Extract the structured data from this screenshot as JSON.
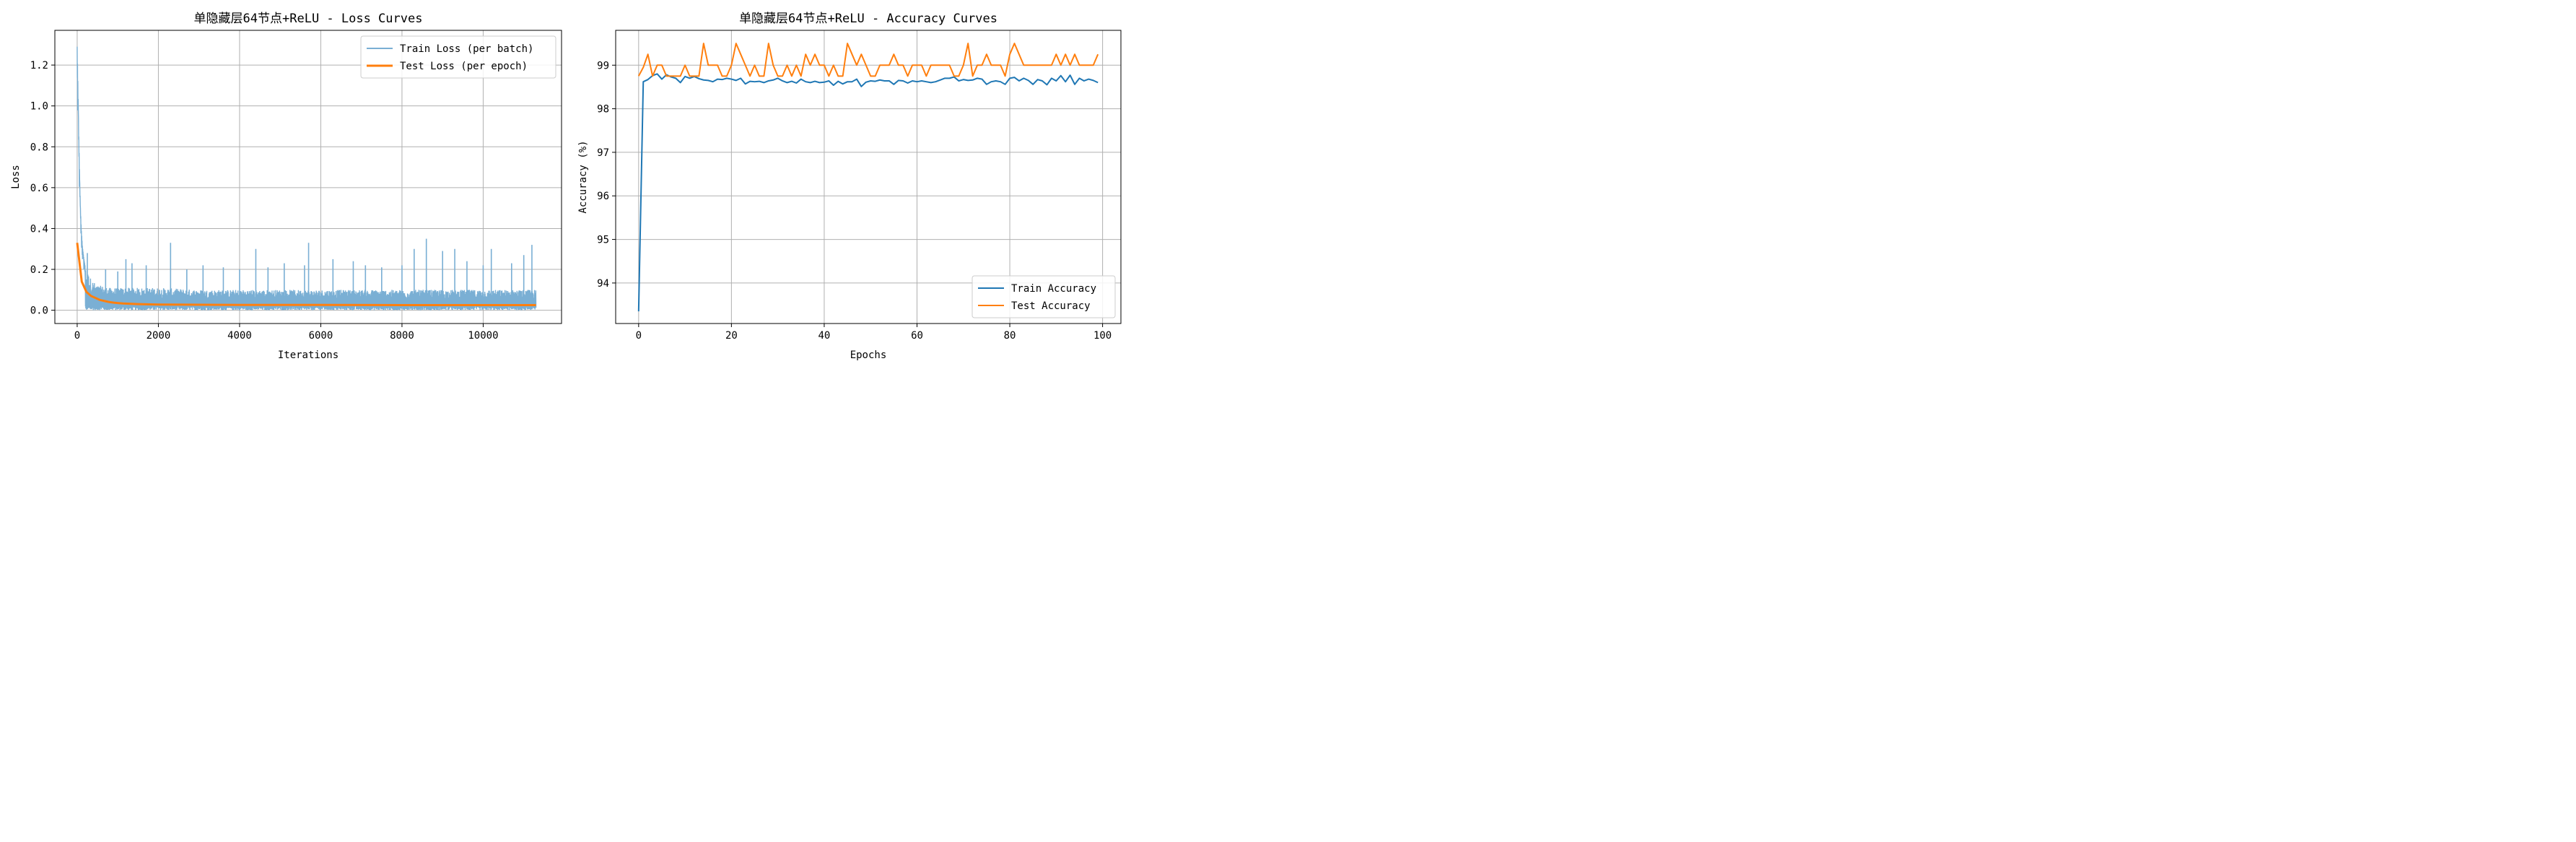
{
  "chart_data": [
    {
      "type": "line",
      "title": "单隐藏层64节点+ReLU - Loss Curves",
      "xlabel": "Iterations",
      "ylabel": "Loss",
      "xlim": [
        -550,
        11930
      ],
      "ylim": [
        -0.065,
        1.37
      ],
      "xticks": [
        0,
        2000,
        4000,
        6000,
        8000,
        10000
      ],
      "xtick_labels": [
        "0",
        "2000",
        "4000",
        "6000",
        "8000",
        "10000"
      ],
      "yticks": [
        0.0,
        0.2,
        0.4,
        0.6,
        0.8,
        1.0,
        1.2
      ],
      "ytick_labels": [
        "0.0",
        "0.2",
        "0.4",
        "0.6",
        "0.8",
        "1.0",
        "1.2"
      ],
      "grid": true,
      "legend_position": "top-right",
      "series": [
        {
          "name": "Train Loss (per batch)",
          "color": "#7aafd4",
          "style": "noisy-band",
          "x": [
            0,
            20,
            40,
            60,
            80,
            100,
            130,
            160,
            200,
            250,
            300,
            350,
            400,
            500,
            600,
            800,
            1000,
            1500,
            2000,
            3000,
            5000,
            8000,
            11300
          ],
          "values": [
            1.29,
            1.08,
            0.85,
            0.65,
            0.5,
            0.4,
            0.31,
            0.26,
            0.21,
            0.19,
            0.17,
            0.15,
            0.14,
            0.12,
            0.12,
            0.11,
            0.11,
            0.11,
            0.11,
            0.1,
            0.1,
            0.1,
            0.1
          ],
          "lower": 0.0,
          "spikes": [
            [
              250,
              0.28
            ],
            [
              700,
              0.2
            ],
            [
              1000,
              0.19
            ],
            [
              1200,
              0.25
            ],
            [
              1350,
              0.23
            ],
            [
              1700,
              0.22
            ],
            [
              2300,
              0.33
            ],
            [
              2700,
              0.2
            ],
            [
              3100,
              0.22
            ],
            [
              3600,
              0.21
            ],
            [
              4000,
              0.2
            ],
            [
              4400,
              0.3
            ],
            [
              4700,
              0.21
            ],
            [
              5100,
              0.23
            ],
            [
              5600,
              0.22
            ],
            [
              5700,
              0.33
            ],
            [
              6300,
              0.25
            ],
            [
              6800,
              0.24
            ],
            [
              7100,
              0.22
            ],
            [
              7500,
              0.21
            ],
            [
              8000,
              0.22
            ],
            [
              8300,
              0.3
            ],
            [
              8600,
              0.35
            ],
            [
              9000,
              0.29
            ],
            [
              9300,
              0.3
            ],
            [
              9600,
              0.24
            ],
            [
              10000,
              0.22
            ],
            [
              10200,
              0.3
            ],
            [
              10700,
              0.23
            ],
            [
              11000,
              0.27
            ],
            [
              11200,
              0.32
            ]
          ]
        },
        {
          "name": "Test Loss (per epoch)",
          "color": "#ff7f0e",
          "x": [
            0,
            113,
            226,
            339,
            452,
            565,
            678,
            791,
            904,
            1017,
            1130,
            1500,
            2000,
            3000,
            4000,
            6000,
            8000,
            10000,
            11300
          ],
          "values": [
            0.33,
            0.14,
            0.09,
            0.07,
            0.06,
            0.05,
            0.045,
            0.04,
            0.037,
            0.035,
            0.033,
            0.03,
            0.028,
            0.027,
            0.026,
            0.026,
            0.025,
            0.025,
            0.025
          ]
        }
      ]
    },
    {
      "type": "line",
      "title": "单隐藏层64节点+ReLU - Accuracy Curves",
      "xlabel": "Epochs",
      "ylabel": "Accuracy (%)",
      "xlim": [
        -4.95,
        103.95
      ],
      "ylim": [
        93.07,
        99.8
      ],
      "xticks": [
        0,
        20,
        40,
        60,
        80,
        100
      ],
      "xtick_labels": [
        "0",
        "20",
        "40",
        "60",
        "80",
        "100"
      ],
      "yticks": [
        94,
        95,
        96,
        97,
        98,
        99
      ],
      "ytick_labels": [
        "94",
        "95",
        "96",
        "97",
        "98",
        "99"
      ],
      "grid": true,
      "legend_position": "bottom-right",
      "series": [
        {
          "name": "Train Accuracy",
          "color": "#1f77b4",
          "values": [
            93.35,
            98.62,
            98.67,
            98.76,
            98.8,
            98.68,
            98.78,
            98.73,
            98.7,
            98.6,
            98.74,
            98.7,
            98.74,
            98.69,
            98.66,
            98.65,
            98.62,
            98.68,
            98.67,
            98.7,
            98.68,
            98.65,
            98.7,
            98.57,
            98.63,
            98.62,
            98.63,
            98.6,
            98.64,
            98.66,
            98.7,
            98.64,
            98.6,
            98.63,
            98.59,
            98.68,
            98.62,
            98.6,
            98.63,
            98.6,
            98.61,
            98.64,
            98.54,
            98.63,
            98.57,
            98.62,
            98.62,
            98.68,
            98.51,
            98.61,
            98.64,
            98.63,
            98.66,
            98.64,
            98.64,
            98.56,
            98.65,
            98.64,
            98.59,
            98.64,
            98.62,
            98.64,
            98.62,
            98.6,
            98.62,
            98.66,
            98.7,
            98.7,
            98.73,
            98.64,
            98.67,
            98.65,
            98.66,
            98.7,
            98.68,
            98.56,
            98.62,
            98.64,
            98.62,
            98.56,
            98.7,
            98.72,
            98.64,
            98.7,
            98.65,
            98.56,
            98.67,
            98.64,
            98.55,
            98.7,
            98.64,
            98.76,
            98.62,
            98.77,
            98.56,
            98.7,
            98.64,
            98.68,
            98.65,
            98.6
          ]
        },
        {
          "name": "Test Accuracy",
          "color": "#ff7f0e",
          "values": [
            98.75,
            98.95,
            99.25,
            98.75,
            99.0,
            99.0,
            98.75,
            98.75,
            98.75,
            98.75,
            99.0,
            98.75,
            98.75,
            98.75,
            99.5,
            99.0,
            99.0,
            99.0,
            98.75,
            98.75,
            99.0,
            99.5,
            99.25,
            99.0,
            98.75,
            99.0,
            98.75,
            98.75,
            99.5,
            99.0,
            98.75,
            98.75,
            99.0,
            98.75,
            99.0,
            98.75,
            99.25,
            99.0,
            99.25,
            99.0,
            99.0,
            98.75,
            99.0,
            98.75,
            98.75,
            99.5,
            99.25,
            99.0,
            99.25,
            99.0,
            98.75,
            98.75,
            99.0,
            99.0,
            99.0,
            99.25,
            99.0,
            99.0,
            98.75,
            99.0,
            99.0,
            99.0,
            98.75,
            99.0,
            99.0,
            99.0,
            99.0,
            99.0,
            98.75,
            98.75,
            99.0,
            99.5,
            98.75,
            99.0,
            99.0,
            99.25,
            99.0,
            99.0,
            99.0,
            98.75,
            99.25,
            99.5,
            99.25,
            99.0,
            99.0,
            99.0,
            99.0,
            99.0,
            99.0,
            99.0,
            99.25,
            99.0,
            99.25,
            99.0,
            99.25,
            99.0,
            99.0,
            99.0,
            99.0,
            99.25
          ]
        }
      ]
    }
  ]
}
